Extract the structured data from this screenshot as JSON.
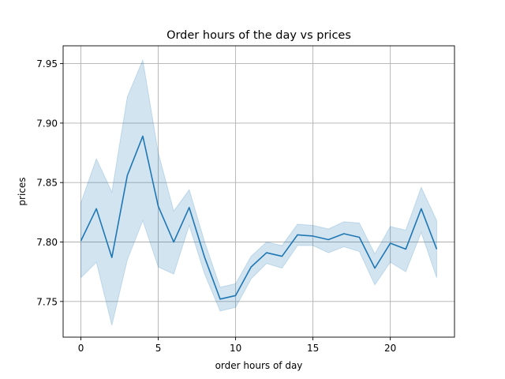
{
  "chart_data": {
    "type": "line",
    "title": "Order hours of the day vs prices",
    "xlabel": "order hours of day",
    "ylabel": "prices",
    "xlim": [
      -1.15,
      24.15
    ],
    "ylim": [
      7.72,
      7.965
    ],
    "x_ticks": [
      0,
      5,
      10,
      15,
      20
    ],
    "x_tick_labels": [
      "0",
      "5",
      "10",
      "15",
      "20"
    ],
    "y_ticks": [
      7.75,
      7.8,
      7.85,
      7.9,
      7.95
    ],
    "y_tick_labels": [
      "7.75",
      "7.80",
      "7.85",
      "7.90",
      "7.95"
    ],
    "grid": true,
    "colors": {
      "line": "#1f77b4",
      "band": "#1f77b4"
    },
    "series": [
      {
        "x": [
          0,
          1,
          2,
          3,
          4,
          5,
          6,
          7,
          8,
          9,
          10,
          11,
          12,
          13,
          14,
          15,
          16,
          17,
          18,
          19,
          20,
          21,
          22,
          23
        ],
        "values": [
          7.801,
          7.828,
          7.787,
          7.856,
          7.889,
          7.83,
          7.8,
          7.829,
          7.787,
          7.752,
          7.755,
          7.779,
          7.791,
          7.788,
          7.806,
          7.805,
          7.802,
          7.807,
          7.804,
          7.778,
          7.799,
          7.794,
          7.828,
          7.794
        ],
        "ci_lower": [
          7.77,
          7.783,
          7.73,
          7.785,
          7.818,
          7.779,
          7.773,
          7.814,
          7.773,
          7.742,
          7.745,
          7.769,
          7.782,
          7.778,
          7.797,
          7.797,
          7.791,
          7.796,
          7.792,
          7.764,
          7.783,
          7.775,
          7.808,
          7.77
        ],
        "ci_upper": [
          7.833,
          7.87,
          7.842,
          7.922,
          7.953,
          7.875,
          7.826,
          7.844,
          7.8,
          7.762,
          7.765,
          7.788,
          7.8,
          7.797,
          7.815,
          7.814,
          7.811,
          7.817,
          7.816,
          7.79,
          7.813,
          7.81,
          7.846,
          7.818
        ]
      }
    ]
  }
}
